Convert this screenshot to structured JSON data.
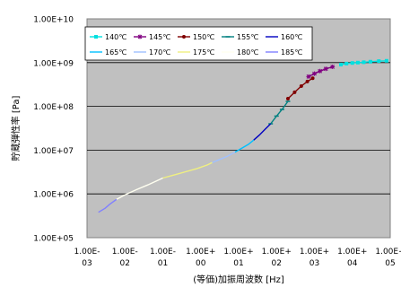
{
  "chart_data": {
    "type": "line",
    "title": "",
    "xlabel": "(等価)加振周波数 [Hz]",
    "ylabel": "貯蔵弾性率 [Pa]",
    "x_scale": "log",
    "y_scale": "log",
    "xlim": [
      0.001,
      100000
    ],
    "ylim": [
      100000,
      10000000000
    ],
    "x_ticks": [
      0.001,
      0.01,
      0.1,
      1,
      10,
      100,
      1000,
      10000,
      100000
    ],
    "x_tick_labels": [
      [
        "1.00E-",
        "03"
      ],
      [
        "1.00E-",
        "02"
      ],
      [
        "1.00E-",
        "01"
      ],
      [
        "1.00E+",
        "00"
      ],
      [
        "1.00E+",
        "01"
      ],
      [
        "1.00E+",
        "02"
      ],
      [
        "1.00E+",
        "03"
      ],
      [
        "1.00E+",
        "04"
      ],
      [
        "1.00E+",
        "05"
      ]
    ],
    "y_ticks": [
      100000,
      1000000,
      10000000,
      100000000,
      1000000000,
      10000000000
    ],
    "y_tick_labels": [
      "1.00E+05",
      "1.00E+06",
      "1.00E+07",
      "1.00E+08",
      "1.00E+09",
      "1.00E+10"
    ],
    "grid": "horizontal",
    "plot_background": "#c0c0c0",
    "legend_position": "top-left",
    "series": [
      {
        "name": "140℃",
        "color": "#00e0e0",
        "marker": "square",
        "x": [
          5000,
          7000,
          10000,
          14000,
          20000,
          30000,
          50000,
          80000
        ],
        "y": [
          900000000,
          950000000,
          980000000,
          1000000000,
          1020000000,
          1050000000,
          1080000000,
          1100000000
        ]
      },
      {
        "name": "145℃",
        "color": "#800080",
        "marker": "star",
        "x": [
          700,
          1000,
          1400,
          2000,
          3000
        ],
        "y": [
          480000000,
          560000000,
          640000000,
          720000000,
          800000000
        ]
      },
      {
        "name": "150℃",
        "color": "#800000",
        "marker": "dot",
        "x": [
          200,
          300,
          450,
          650,
          900
        ],
        "y": [
          150000000,
          210000000,
          290000000,
          370000000,
          440000000
        ]
      },
      {
        "name": "155℃",
        "color": "#008080",
        "marker": "dash",
        "x": [
          70,
          100,
          140,
          200
        ],
        "y": [
          40000000,
          60000000,
          85000000,
          130000000
        ]
      },
      {
        "name": "160℃",
        "color": "#0000c0",
        "marker": "line",
        "x": [
          25,
          35,
          50,
          70
        ],
        "y": [
          17000000,
          22000000,
          30000000,
          40000000
        ]
      },
      {
        "name": "165℃",
        "color": "#00c0ff",
        "marker": "line",
        "x": [
          8,
          12,
          18,
          25
        ],
        "y": [
          9000000,
          11000000,
          13500000,
          17000000
        ]
      },
      {
        "name": "170℃",
        "color": "#a0c0ff",
        "marker": "line",
        "x": [
          2,
          3,
          5,
          8
        ],
        "y": [
          5200000,
          6000000,
          7200000,
          9000000
        ]
      },
      {
        "name": "175℃",
        "color": "#f0f080",
        "marker": "line",
        "x": [
          0.1,
          0.2,
          0.4,
          0.8,
          1.5,
          2
        ],
        "y": [
          2300000,
          2700000,
          3200000,
          3800000,
          4600000,
          5200000
        ]
      },
      {
        "name": "180℃",
        "color": "#fffff0",
        "marker": "line",
        "x": [
          0.006,
          0.01,
          0.02,
          0.04,
          0.07,
          0.1
        ],
        "y": [
          750000,
          950000,
          1250000,
          1600000,
          2000000,
          2300000
        ]
      },
      {
        "name": "185℃",
        "color": "#8080ff",
        "marker": "line",
        "x": [
          0.002,
          0.003,
          0.004,
          0.006
        ],
        "y": [
          380000,
          470000,
          580000,
          750000
        ]
      }
    ]
  }
}
